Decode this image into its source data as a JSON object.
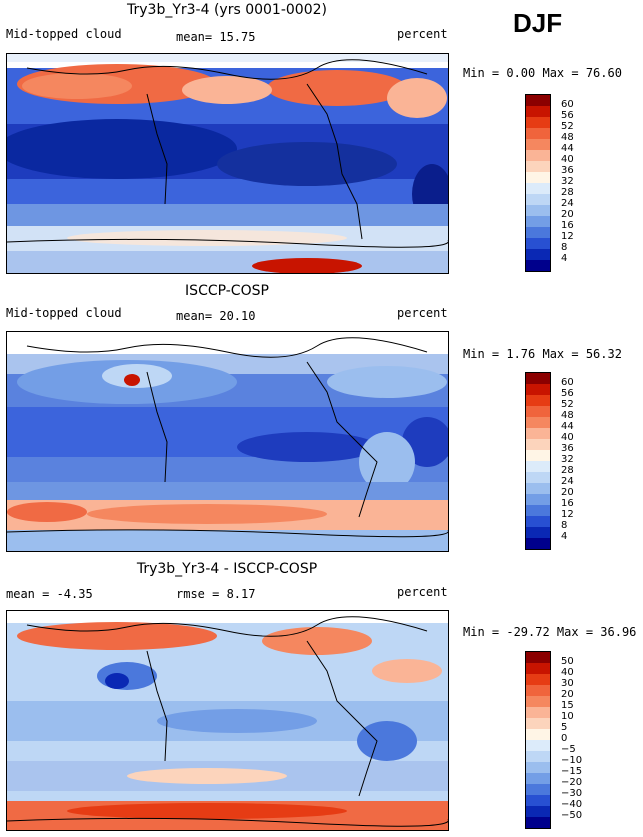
{
  "season": "DJF",
  "panels": [
    {
      "title": "Try3b_Yr3-4 (yrs 0001-0002)",
      "left_label": "Mid-topped cloud",
      "mid_label": "mean=  15.75",
      "right_label": "percent",
      "minmax": "Min =   0.00 Max =  76.60",
      "colorbar_labels": [
        "60",
        "56",
        "52",
        "48",
        "44",
        "40",
        "36",
        "32",
        "28",
        "24",
        "20",
        "16",
        "12",
        "8",
        "4"
      ]
    },
    {
      "title": "ISCCP-COSP",
      "left_label": "Mid-topped cloud",
      "mid_label": "mean=  20.10",
      "right_label": "percent",
      "minmax": "Min =   1.76 Max =  56.32",
      "colorbar_labels": [
        "60",
        "56",
        "52",
        "48",
        "44",
        "40",
        "36",
        "32",
        "28",
        "24",
        "20",
        "16",
        "12",
        "8",
        "4"
      ]
    },
    {
      "title": "Try3b_Yr3-4 - ISCCP-COSP",
      "left_label": "mean =  -4.35",
      "mid_label": "rmse =   8.17",
      "right_label": "percent",
      "minmax": "Min = -29.72 Max =  36.96",
      "colorbar_labels": [
        "50",
        "40",
        "30",
        "20",
        "15",
        "10",
        "5",
        "0",
        "−5",
        "−10",
        "−15",
        "−20",
        "−30",
        "−40",
        "−50"
      ]
    }
  ],
  "colorbar_colors": [
    "#8b0000",
    "#c81400",
    "#e63c14",
    "#f0643c",
    "#f5875f",
    "#fab496",
    "#fcd4bc",
    "#fff5e6",
    "#dcebfa",
    "#bed7f5",
    "#9bbeee",
    "#739ee6",
    "#4b78dc",
    "#2850d2",
    "#0a28b4",
    "#00008c"
  ],
  "chart_data": [
    {
      "type": "heatmap",
      "title": "Try3b_Yr3-4 (yrs 0001-0002)",
      "variable": "Mid-topped cloud",
      "units": "percent",
      "mean": 15.75,
      "min": 0.0,
      "max": 76.6,
      "contour_levels": [
        4,
        8,
        12,
        16,
        20,
        24,
        28,
        32,
        36,
        40,
        44,
        48,
        52,
        56,
        60
      ]
    },
    {
      "type": "heatmap",
      "title": "ISCCP-COSP",
      "variable": "Mid-topped cloud",
      "units": "percent",
      "mean": 20.1,
      "min": 1.76,
      "max": 56.32,
      "contour_levels": [
        4,
        8,
        12,
        16,
        20,
        24,
        28,
        32,
        36,
        40,
        44,
        48,
        52,
        56,
        60
      ]
    },
    {
      "type": "heatmap",
      "title": "Try3b_Yr3-4 - ISCCP-COSP",
      "units": "percent",
      "mean": -4.35,
      "rmse": 8.17,
      "min": -29.72,
      "max": 36.96,
      "contour_levels": [
        -50,
        -40,
        -30,
        -20,
        -15,
        -10,
        -5,
        0,
        5,
        10,
        15,
        20,
        30,
        40,
        50
      ]
    }
  ]
}
